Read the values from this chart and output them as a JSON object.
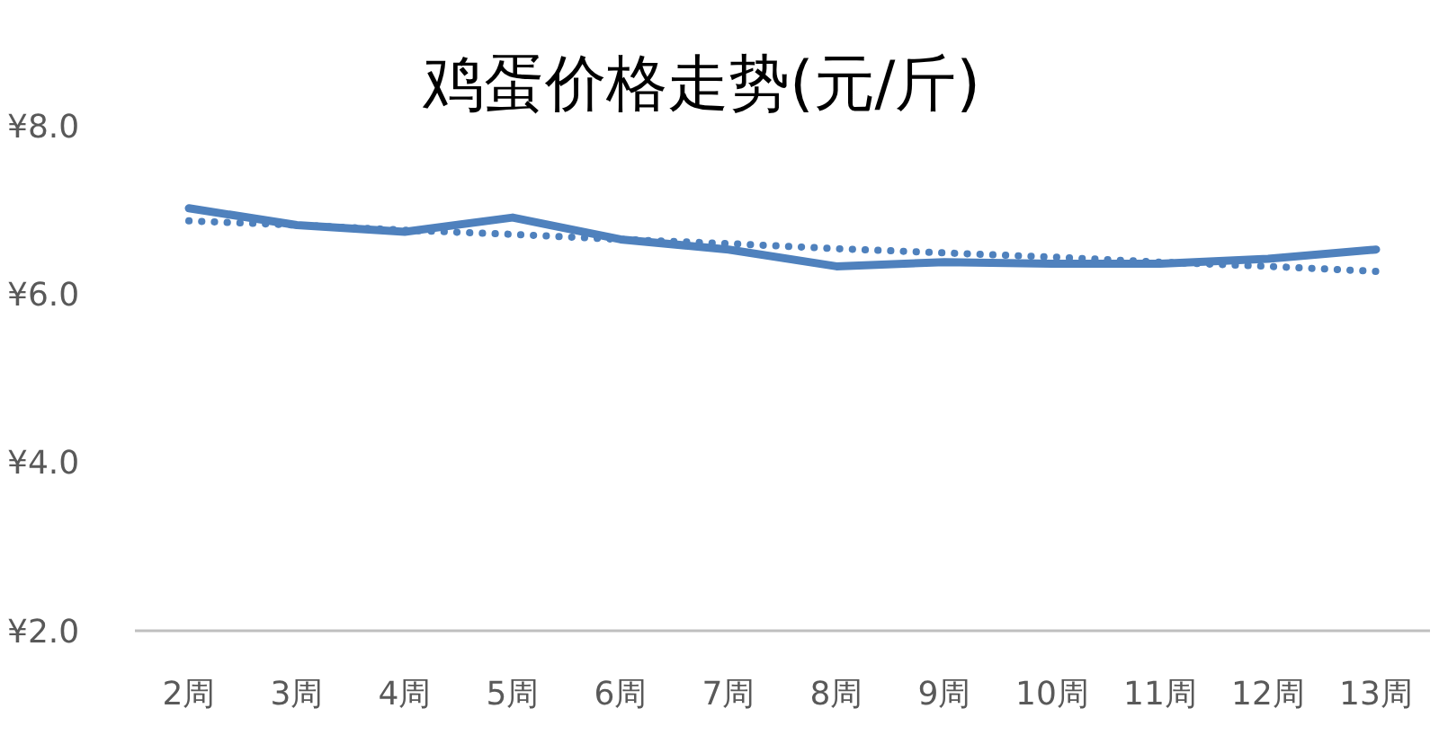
{
  "chart_data": {
    "type": "line",
    "title": "鸡蛋价格走势(元/斤)",
    "categories": [
      "2周",
      "3周",
      "4周",
      "5周",
      "6周",
      "7周",
      "8周",
      "9周",
      "10周",
      "11周",
      "12周",
      "13周"
    ],
    "series": [
      {
        "color": "#4f81bd",
        "values": [
          7.02,
          6.82,
          6.74,
          6.91,
          6.65,
          6.53,
          6.33,
          6.38,
          6.36,
          6.36,
          6.42,
          6.53
        ]
      },
      {
        "type": "line",
        "line_style": "dotted",
        "color": "#4f81bd",
        "values": [
          6.87,
          6.82,
          6.76,
          6.71,
          6.65,
          6.6,
          6.54,
          6.49,
          6.44,
          6.38,
          6.33,
          6.27
        ]
      }
    ],
    "ylim": [
      2,
      8
    ],
    "yticks": [
      {
        "value": 2,
        "label": "¥2.0"
      },
      {
        "value": 4,
        "label": "¥4.0"
      },
      {
        "value": 6,
        "label": "¥6.0"
      },
      {
        "value": 8,
        "label": "¥8.0"
      }
    ],
    "grid": false,
    "marker": "none",
    "line_style": "solid"
  }
}
